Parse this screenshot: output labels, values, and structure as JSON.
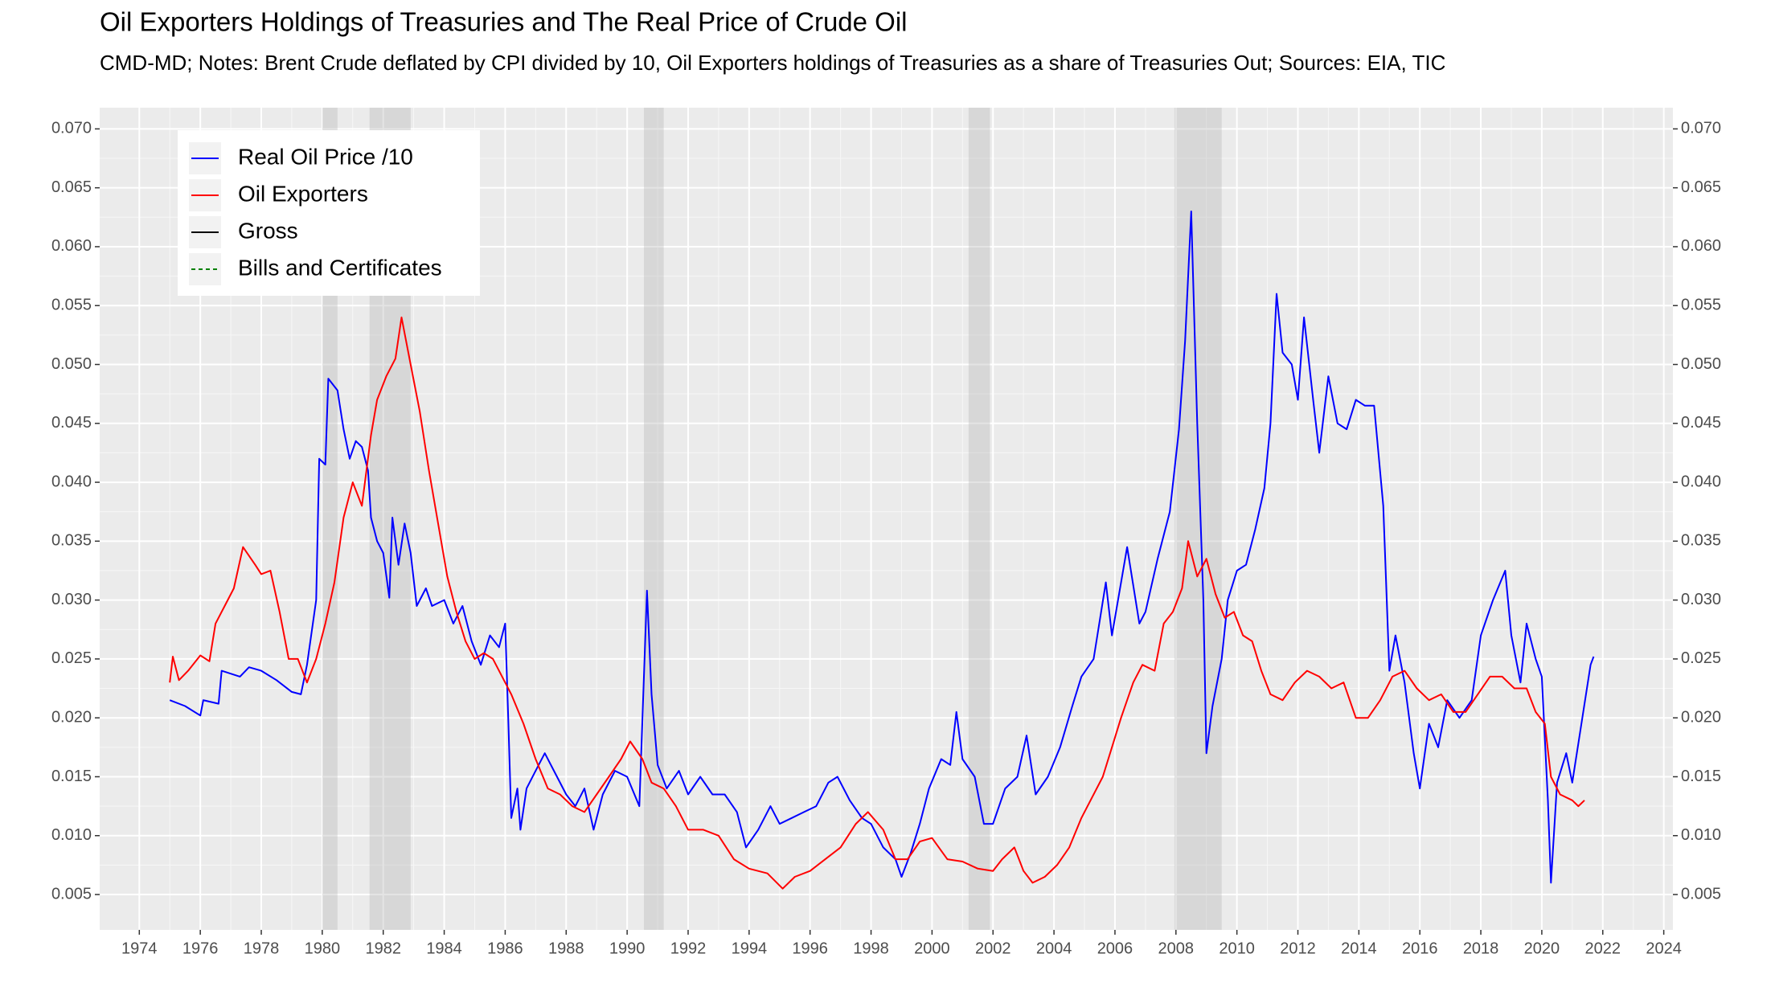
{
  "chart_data": {
    "type": "line",
    "title": "Oil Exporters Holdings of Treasuries and The Real Price of Crude Oil",
    "subtitle": "CMD-MD; Notes: Brent Crude deflated by CPI divided by 10, Oil Exporters holdings of Treasuries as a share of Treasuries Out; Sources: EIA, TIC",
    "xlim": [
      1972.7,
      2024.3
    ],
    "ylim": [
      0.002,
      0.0718
    ],
    "y2lim": [
      0.002,
      0.0718
    ],
    "xticks": [
      1974,
      1976,
      1978,
      1980,
      1982,
      1984,
      1986,
      1988,
      1990,
      1992,
      1994,
      1996,
      1998,
      2000,
      2002,
      2004,
      2006,
      2008,
      2010,
      2012,
      2014,
      2016,
      2018,
      2020,
      2022,
      2024
    ],
    "yticks": [
      0.005,
      {
        "value": 0.01,
        "label": "0.010"
      },
      0.015,
      {
        "value": 0.02,
        "label": "0.020"
      },
      0.025,
      {
        "value": 0.03,
        "label": "0.030"
      },
      0.035,
      {
        "value": 0.04,
        "label": "0.040"
      },
      0.045,
      {
        "value": 0.05,
        "label": "0.050"
      },
      0.055,
      {
        "value": 0.06,
        "label": "0.060"
      },
      0.065,
      {
        "value": 0.07,
        "label": "0.070"
      }
    ],
    "y2ticks": [
      0.005,
      {
        "value": 0.01,
        "label": "0.010"
      },
      0.015,
      {
        "value": 0.02,
        "label": "0.020"
      },
      0.025,
      {
        "value": 0.03,
        "label": "0.030"
      },
      0.035,
      {
        "value": 0.04,
        "label": "0.040"
      },
      0.045,
      {
        "value": 0.05,
        "label": "0.050"
      },
      0.055,
      {
        "value": 0.06,
        "label": "0.060"
      },
      0.065,
      {
        "value": 0.07,
        "label": "0.070"
      }
    ],
    "grid": true,
    "legend_position": "top-left",
    "recessions": [
      [
        1980.0,
        1980.5
      ],
      [
        1981.55,
        1982.9
      ],
      [
        1990.55,
        1991.2
      ],
      [
        2001.2,
        2001.9
      ],
      [
        2007.95,
        2009.5
      ]
    ],
    "series": [
      {
        "name": "Real Oil Price /10",
        "color": "#0000ff",
        "dash": false,
        "x": [
          1975.0,
          1975.5,
          1976.0,
          1976.1,
          1976.6,
          1976.7,
          1977.3,
          1977.6,
          1978.0,
          1978.5,
          1979.0,
          1979.3,
          1979.5,
          1979.8,
          1979.9,
          1980.1,
          1980.2,
          1980.5,
          1980.7,
          1980.9,
          1981.1,
          1981.3,
          1981.5,
          1981.6,
          1981.8,
          1982.0,
          1982.2,
          1982.3,
          1982.5,
          1982.7,
          1982.9,
          1983.1,
          1983.4,
          1983.6,
          1984.0,
          1984.3,
          1984.6,
          1984.9,
          1985.2,
          1985.5,
          1985.8,
          1986.0,
          1986.1,
          1986.2,
          1986.4,
          1986.5,
          1986.7,
          1987.0,
          1987.3,
          1987.7,
          1988.0,
          1988.3,
          1988.6,
          1988.9,
          1989.2,
          1989.6,
          1990.0,
          1990.4,
          1990.65,
          1990.8,
          1991.0,
          1991.3,
          1991.7,
          1992.0,
          1992.4,
          1992.8,
          1993.2,
          1993.6,
          1993.9,
          1994.3,
          1994.7,
          1995.0,
          1995.4,
          1995.8,
          1996.2,
          1996.6,
          1996.9,
          1997.3,
          1997.7,
          1998.0,
          1998.4,
          1998.8,
          1999.0,
          1999.3,
          1999.6,
          1999.9,
          2000.3,
          2000.6,
          2000.8,
          2001.0,
          2001.4,
          2001.7,
          2002.0,
          2002.4,
          2002.8,
          2003.1,
          2003.4,
          2003.8,
          2004.2,
          2004.6,
          2004.9,
          2005.3,
          2005.7,
          2005.9,
          2006.4,
          2006.8,
          2007.0,
          2007.4,
          2007.8,
          2008.1,
          2008.3,
          2008.5,
          2008.7,
          2008.9,
          2009.0,
          2009.2,
          2009.5,
          2009.7,
          2010.0,
          2010.3,
          2010.6,
          2010.9,
          2011.1,
          2011.3,
          2011.5,
          2011.8,
          2012.0,
          2012.2,
          2012.5,
          2012.7,
          2013.0,
          2013.3,
          2013.6,
          2013.9,
          2014.2,
          2014.5,
          2014.8,
          2015.0,
          2015.2,
          2015.5,
          2015.8,
          2016.0,
          2016.3,
          2016.6,
          2016.9,
          2017.3,
          2017.7,
          2018.0,
          2018.4,
          2018.8,
          2019.0,
          2019.3,
          2019.5,
          2019.8,
          2020.0,
          2020.2,
          2020.3,
          2020.5,
          2020.8,
          2021.0,
          2021.3,
          2021.6,
          2021.7
        ],
        "values": [
          0.0215,
          0.021,
          0.0202,
          0.0215,
          0.0212,
          0.024,
          0.0235,
          0.0243,
          0.024,
          0.0232,
          0.0222,
          0.022,
          0.0245,
          0.03,
          0.042,
          0.0415,
          0.0488,
          0.0478,
          0.0445,
          0.042,
          0.0435,
          0.043,
          0.041,
          0.037,
          0.035,
          0.034,
          0.0302,
          0.037,
          0.033,
          0.0365,
          0.034,
          0.0295,
          0.031,
          0.0295,
          0.03,
          0.028,
          0.0295,
          0.0265,
          0.0245,
          0.027,
          0.026,
          0.028,
          0.02,
          0.0115,
          0.014,
          0.0105,
          0.014,
          0.0155,
          0.017,
          0.015,
          0.0135,
          0.0125,
          0.014,
          0.0105,
          0.0135,
          0.0155,
          0.015,
          0.0125,
          0.0308,
          0.022,
          0.016,
          0.014,
          0.0155,
          0.0135,
          0.015,
          0.0135,
          0.0135,
          0.012,
          0.009,
          0.0105,
          0.0125,
          0.011,
          0.0115,
          0.012,
          0.0125,
          0.0145,
          0.015,
          0.013,
          0.0115,
          0.011,
          0.009,
          0.008,
          0.0065,
          0.0085,
          0.011,
          0.014,
          0.0165,
          0.016,
          0.0205,
          0.0165,
          0.015,
          0.011,
          0.011,
          0.014,
          0.015,
          0.0185,
          0.0135,
          0.015,
          0.0175,
          0.021,
          0.0235,
          0.025,
          0.0315,
          0.027,
          0.0345,
          0.028,
          0.029,
          0.0335,
          0.0375,
          0.0445,
          0.052,
          0.063,
          0.045,
          0.03,
          0.017,
          0.021,
          0.025,
          0.03,
          0.0325,
          0.033,
          0.036,
          0.0395,
          0.045,
          0.056,
          0.051,
          0.05,
          0.047,
          0.054,
          0.047,
          0.0425,
          0.049,
          0.045,
          0.0445,
          0.047,
          0.0465,
          0.0465,
          0.038,
          0.024,
          0.027,
          0.023,
          0.017,
          0.014,
          0.0195,
          0.0175,
          0.0215,
          0.02,
          0.0215,
          0.027,
          0.03,
          0.0325,
          0.027,
          0.023,
          0.028,
          0.025,
          0.0235,
          0.013,
          0.006,
          0.0145,
          0.017,
          0.0145,
          0.0195,
          0.0245,
          0.0252
        ]
      },
      {
        "name": "Oil Exporters",
        "color": "#ff0000",
        "dash": false,
        "x": [
          1975.0,
          1975.1,
          1975.3,
          1975.6,
          1976.0,
          1976.3,
          1976.5,
          1976.8,
          1977.1,
          1977.4,
          1977.8,
          1978.0,
          1978.3,
          1978.6,
          1978.9,
          1979.2,
          1979.5,
          1979.8,
          1980.1,
          1980.4,
          1980.7,
          1981.0,
          1981.3,
          1981.6,
          1981.8,
          1982.1,
          1982.4,
          1982.6,
          1982.9,
          1983.2,
          1983.5,
          1983.8,
          1984.1,
          1984.4,
          1984.7,
          1985.0,
          1985.3,
          1985.6,
          1985.9,
          1986.2,
          1986.6,
          1987.0,
          1987.4,
          1987.8,
          1988.2,
          1988.6,
          1989.0,
          1989.4,
          1989.8,
          1990.1,
          1990.5,
          1990.8,
          1991.2,
          1991.6,
          1992.0,
          1992.5,
          1993.0,
          1993.5,
          1994.0,
          1994.6,
          1995.1,
          1995.5,
          1996.0,
          1996.5,
          1997.0,
          1997.5,
          1997.9,
          1998.4,
          1998.8,
          1999.2,
          1999.6,
          2000.0,
          2000.5,
          2001.0,
          2001.5,
          2002.0,
          2002.3,
          2002.7,
          2003.0,
          2003.3,
          2003.7,
          2004.1,
          2004.5,
          2004.9,
          2005.2,
          2005.6,
          2005.9,
          2006.2,
          2006.6,
          2006.9,
          2007.3,
          2007.6,
          2007.9,
          2008.2,
          2008.4,
          2008.7,
          2009.0,
          2009.3,
          2009.6,
          2009.9,
          2010.2,
          2010.5,
          2010.8,
          2011.1,
          2011.5,
          2011.9,
          2012.3,
          2012.7,
          2013.1,
          2013.5,
          2013.9,
          2014.3,
          2014.7,
          2015.1,
          2015.5,
          2015.9,
          2016.3,
          2016.7,
          2017.1,
          2017.5,
          2017.9,
          2018.3,
          2018.7,
          2019.1,
          2019.5,
          2019.8,
          2020.1,
          2020.3,
          2020.6,
          2021.0,
          2021.2,
          2021.4
        ],
        "values": [
          0.023,
          0.0252,
          0.0232,
          0.024,
          0.0253,
          0.0248,
          0.028,
          0.0295,
          0.031,
          0.0345,
          0.033,
          0.0322,
          0.0325,
          0.029,
          0.025,
          0.025,
          0.023,
          0.025,
          0.028,
          0.0315,
          0.037,
          0.04,
          0.038,
          0.044,
          0.047,
          0.049,
          0.0505,
          0.054,
          0.05,
          0.046,
          0.041,
          0.0365,
          0.032,
          0.029,
          0.0265,
          0.025,
          0.0255,
          0.025,
          0.0235,
          0.022,
          0.0195,
          0.0165,
          0.014,
          0.0135,
          0.0125,
          0.012,
          0.0135,
          0.015,
          0.0165,
          0.018,
          0.0165,
          0.0145,
          0.014,
          0.0125,
          0.0105,
          0.0105,
          0.01,
          0.008,
          0.0072,
          0.0068,
          0.0055,
          0.0065,
          0.007,
          0.008,
          0.009,
          0.011,
          0.012,
          0.0105,
          0.008,
          0.008,
          0.0095,
          0.0098,
          0.008,
          0.0078,
          0.0072,
          0.007,
          0.008,
          0.009,
          0.007,
          0.006,
          0.0065,
          0.0075,
          0.009,
          0.0115,
          0.013,
          0.015,
          0.0175,
          0.02,
          0.023,
          0.0245,
          0.024,
          0.028,
          0.029,
          0.031,
          0.035,
          0.032,
          0.0335,
          0.0305,
          0.0285,
          0.029,
          0.027,
          0.0265,
          0.024,
          0.022,
          0.0215,
          0.023,
          0.024,
          0.0235,
          0.0225,
          0.023,
          0.02,
          0.02,
          0.0215,
          0.0235,
          0.024,
          0.0225,
          0.0215,
          0.022,
          0.0205,
          0.0205,
          0.022,
          0.0235,
          0.0235,
          0.0225,
          0.0225,
          0.0205,
          0.0195,
          0.015,
          0.0135,
          0.013,
          0.0125,
          0.013
        ]
      },
      {
        "name": "Gross",
        "color": "#000000",
        "dash": false,
        "x": [],
        "values": []
      },
      {
        "name": "Bills and Certificates",
        "color": "#008000",
        "dash": true,
        "x": [],
        "values": []
      }
    ]
  }
}
